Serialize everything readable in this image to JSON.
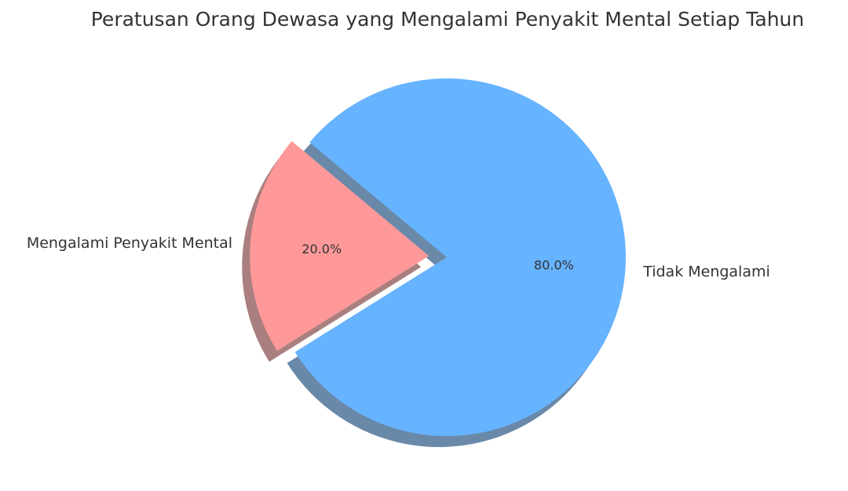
{
  "chart_data": {
    "type": "pie",
    "title": "Peratusan Orang Dewasa yang Mengalami Penyakit Mental Setiap Tahun",
    "slices": [
      {
        "label": "Mengalami Penyakit Mental",
        "value": 20,
        "pct_label": "20.0%",
        "color": "#ff9999",
        "explode": 0.1
      },
      {
        "label": "Tidak Mengalami",
        "value": 80,
        "pct_label": "80.0%",
        "color": "#66b3ff",
        "explode": 0
      }
    ],
    "start_angle": 140,
    "shadow": true
  }
}
